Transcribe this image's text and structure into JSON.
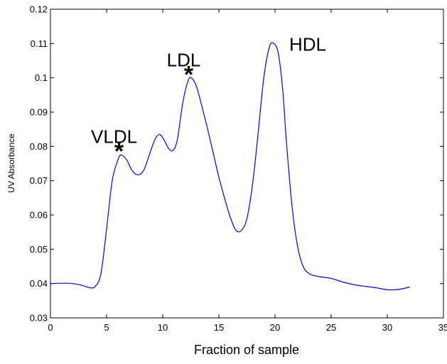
{
  "chart_data": {
    "type": "line",
    "title": "",
    "xlabel": "Fraction of sample",
    "ylabel": "UV Absorbance",
    "xlim": [
      0,
      35
    ],
    "ylim": [
      0.03,
      0.12
    ],
    "grid": false,
    "xticks": [
      0,
      5,
      10,
      15,
      20,
      25,
      30,
      35
    ],
    "xtick_labels": [
      "0",
      "5",
      "10",
      "15",
      "20",
      "25",
      "30",
      "35"
    ],
    "yticks": [
      0.03,
      0.04,
      0.05,
      0.06,
      0.07,
      0.08,
      0.09,
      0.1,
      0.11,
      0.12
    ],
    "ytick_labels": [
      "0.03",
      "0.04",
      "0.05",
      "0.06",
      "0.07",
      "0.08",
      "0.09",
      "0.1",
      "0.11",
      "0.12"
    ],
    "series": [
      {
        "color": "#0000ff",
        "x": [
          0,
          1,
          2,
          2.8,
          3.5,
          4.0,
          4.5,
          5.0,
          5.5,
          6.0,
          6.3,
          6.8,
          7.3,
          7.8,
          8.3,
          8.8,
          9.3,
          9.7,
          10.1,
          10.5,
          10.9,
          11.3,
          11.8,
          12.3,
          12.6,
          13.0,
          13.5,
          14.0,
          14.5,
          15.0,
          15.5,
          16.0,
          16.5,
          17.0,
          17.5,
          18.0,
          18.5,
          19.0,
          19.5,
          19.9,
          20.3,
          20.7,
          21.0,
          21.5,
          22.0,
          22.5,
          23.0,
          23.5,
          24.0,
          25.0,
          26.0,
          27.0,
          28.0,
          29.0,
          30.0,
          31.0,
          32.0
        ],
        "y": [
          0.04,
          0.0401,
          0.04,
          0.0395,
          0.0388,
          0.0392,
          0.043,
          0.056,
          0.07,
          0.076,
          0.0775,
          0.076,
          0.0728,
          0.0717,
          0.073,
          0.0775,
          0.082,
          0.0835,
          0.082,
          0.0795,
          0.0788,
          0.082,
          0.093,
          0.0995,
          0.0998,
          0.0975,
          0.0915,
          0.085,
          0.078,
          0.071,
          0.065,
          0.0595,
          0.0556,
          0.0555,
          0.059,
          0.069,
          0.084,
          0.1,
          0.109,
          0.11,
          0.107,
          0.096,
          0.082,
          0.063,
          0.051,
          0.045,
          0.043,
          0.0423,
          0.042,
          0.0415,
          0.0405,
          0.0397,
          0.0392,
          0.0388,
          0.0382,
          0.0383,
          0.039
        ]
      }
    ],
    "annotations": [
      {
        "text": "VLDL",
        "star": "*",
        "x": 6.3,
        "y": 0.0775
      },
      {
        "text": "LDL",
        "star": "*",
        "x": 12.5,
        "y": 0.0998
      },
      {
        "text": "HDL",
        "star": "",
        "x": 20.0,
        "y": 0.11
      }
    ]
  }
}
